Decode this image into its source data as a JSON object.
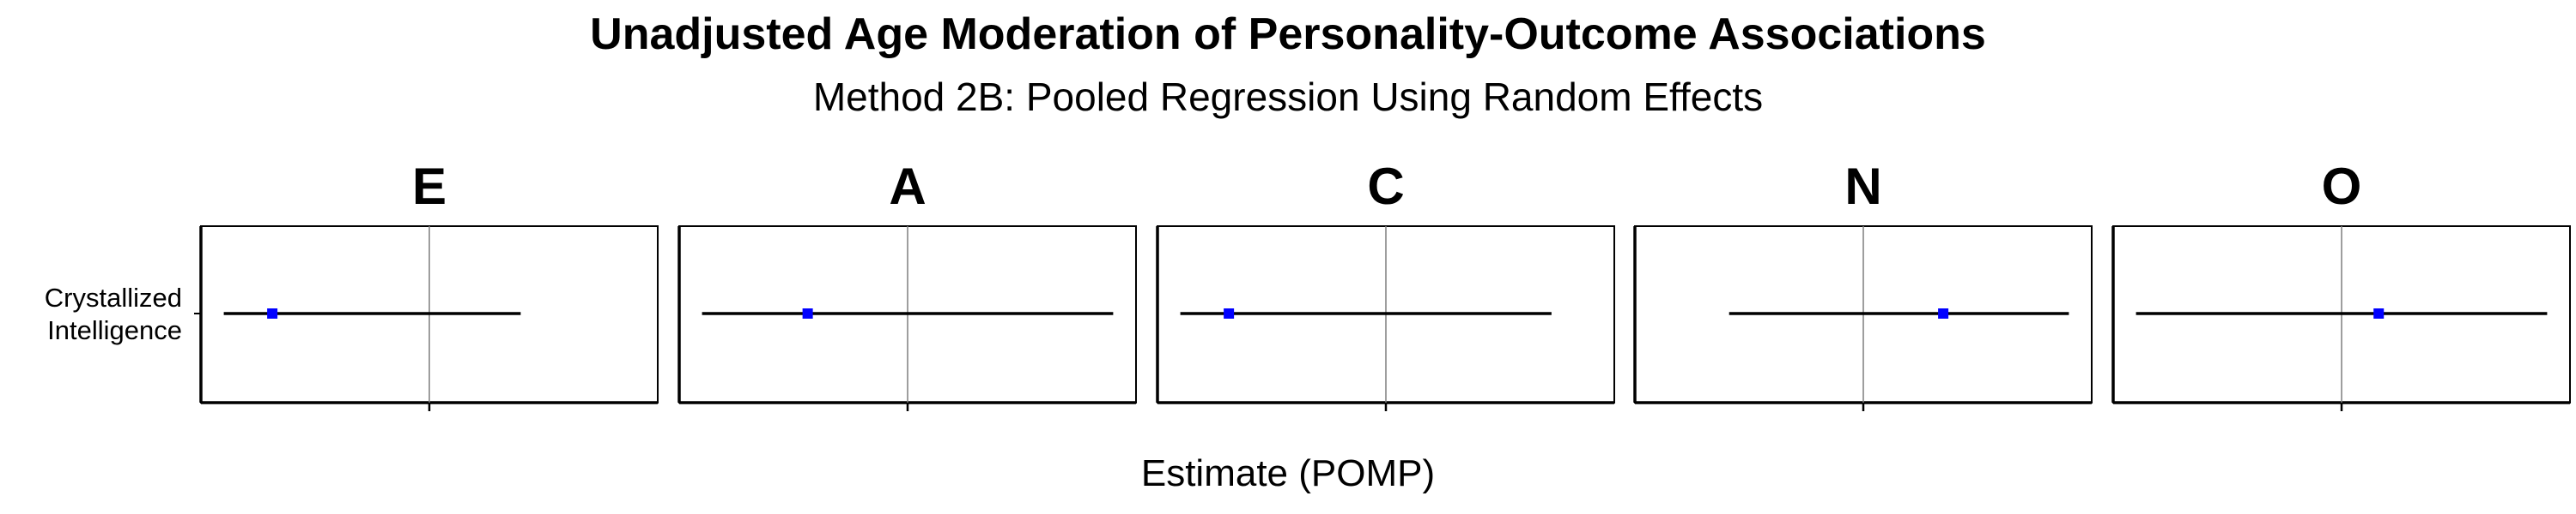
{
  "title": "Unadjusted Age Moderation of Personality-Outcome Associations",
  "subtitle": "Method 2B: Pooled Regression Using Random Effects",
  "colors": {
    "point": "#0000ff",
    "line": "#000000",
    "refline": "#7f7f7f"
  },
  "chart_data": {
    "type": "scatter",
    "title": "Unadjusted Age Moderation of Personality-Outcome Associations",
    "subtitle": "Method 2B: Pooled Regression Using Random Effects",
    "xlabel": "Estimate (POMP)",
    "ylabel": "",
    "grid": false,
    "y_categories": [
      "Crystallized Intelligence"
    ],
    "y_tick_label_lines": [
      "Crystallized",
      "Intelligence"
    ],
    "reference_line_x": 0,
    "panels": [
      {
        "facet": "E",
        "category": "Crystallized Intelligence",
        "estimate": -0.55,
        "ci_low": -0.72,
        "ci_high": 0.32,
        "xlim": [
          -0.8,
          0.8
        ]
      },
      {
        "facet": "A",
        "category": "Crystallized Intelligence",
        "estimate": -0.35,
        "ci_low": -0.72,
        "ci_high": 0.72,
        "xlim": [
          -0.8,
          0.8
        ]
      },
      {
        "facet": "C",
        "category": "Crystallized Intelligence",
        "estimate": -0.55,
        "ci_low": -0.72,
        "ci_high": 0.58,
        "xlim": [
          -0.8,
          0.8
        ]
      },
      {
        "facet": "N",
        "category": "Crystallized Intelligence",
        "estimate": 0.28,
        "ci_low": -0.47,
        "ci_high": 0.72,
        "xlim": [
          -0.8,
          0.8
        ]
      },
      {
        "facet": "O",
        "category": "Crystallized Intelligence",
        "estimate": 0.13,
        "ci_low": -0.72,
        "ci_high": 0.72,
        "xlim": [
          -0.8,
          0.8
        ]
      }
    ]
  }
}
